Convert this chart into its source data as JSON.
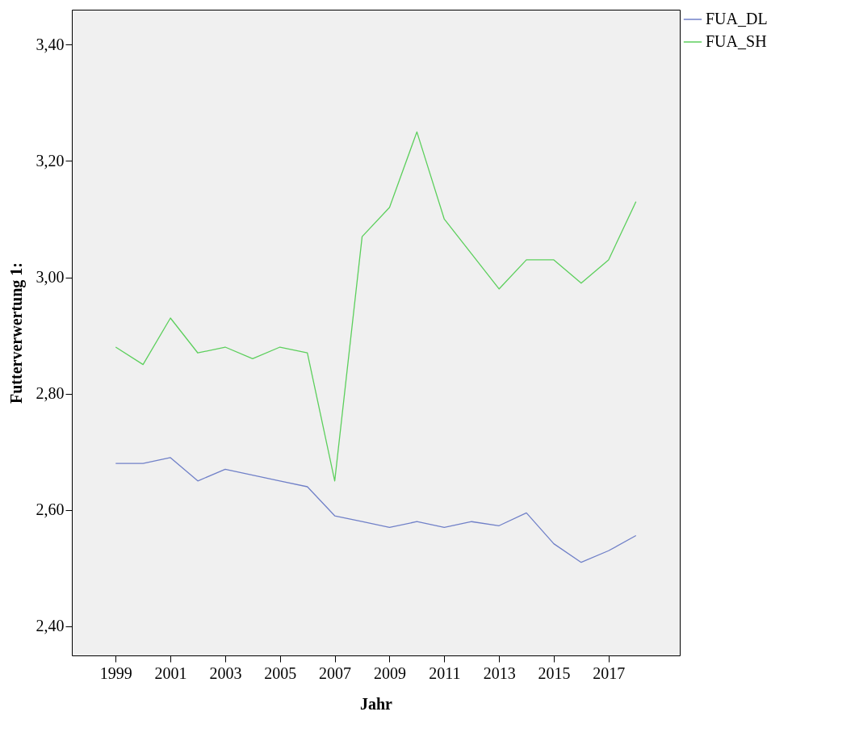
{
  "chart_data": {
    "type": "line",
    "xlabel": "Jahr",
    "ylabel": "Futterverwertung 1:",
    "x": [
      1999,
      2000,
      2001,
      2002,
      2003,
      2004,
      2005,
      2006,
      2007,
      2008,
      2009,
      2010,
      2011,
      2012,
      2013,
      2014,
      2015,
      2016,
      2017,
      2018
    ],
    "series": [
      {
        "name": "FUA_DL",
        "color": "#7080c8",
        "values": [
          2.68,
          2.68,
          2.69,
          2.65,
          2.67,
          2.66,
          2.65,
          2.64,
          2.59,
          2.58,
          2.57,
          2.58,
          2.57,
          2.58,
          2.573,
          2.595,
          2.542,
          2.51,
          2.53,
          2.556
        ]
      },
      {
        "name": "FUA_SH",
        "color": "#5ccf5c",
        "values": [
          2.88,
          2.85,
          2.93,
          2.87,
          2.88,
          2.86,
          2.88,
          2.87,
          2.65,
          3.07,
          3.12,
          3.25,
          3.1,
          3.04,
          2.98,
          3.03,
          3.03,
          2.99,
          3.03,
          3.13
        ]
      }
    ],
    "xlim": [
      1997.4,
      2019.6
    ],
    "xticks": [
      1999,
      2001,
      2003,
      2005,
      2007,
      2009,
      2011,
      2013,
      2015,
      2017
    ],
    "ylim": [
      2.35,
      3.46
    ],
    "yticks": [
      {
        "value": 2.4,
        "label": "2,40"
      },
      {
        "value": 2.6,
        "label": "2,60"
      },
      {
        "value": 2.8,
        "label": "2,80"
      },
      {
        "value": 3.0,
        "label": "3,00"
      },
      {
        "value": 3.2,
        "label": "3,20"
      },
      {
        "value": 3.4,
        "label": "3,40"
      }
    ],
    "grid": false,
    "legend": "top right",
    "marker": "none",
    "line_style": "solid"
  }
}
